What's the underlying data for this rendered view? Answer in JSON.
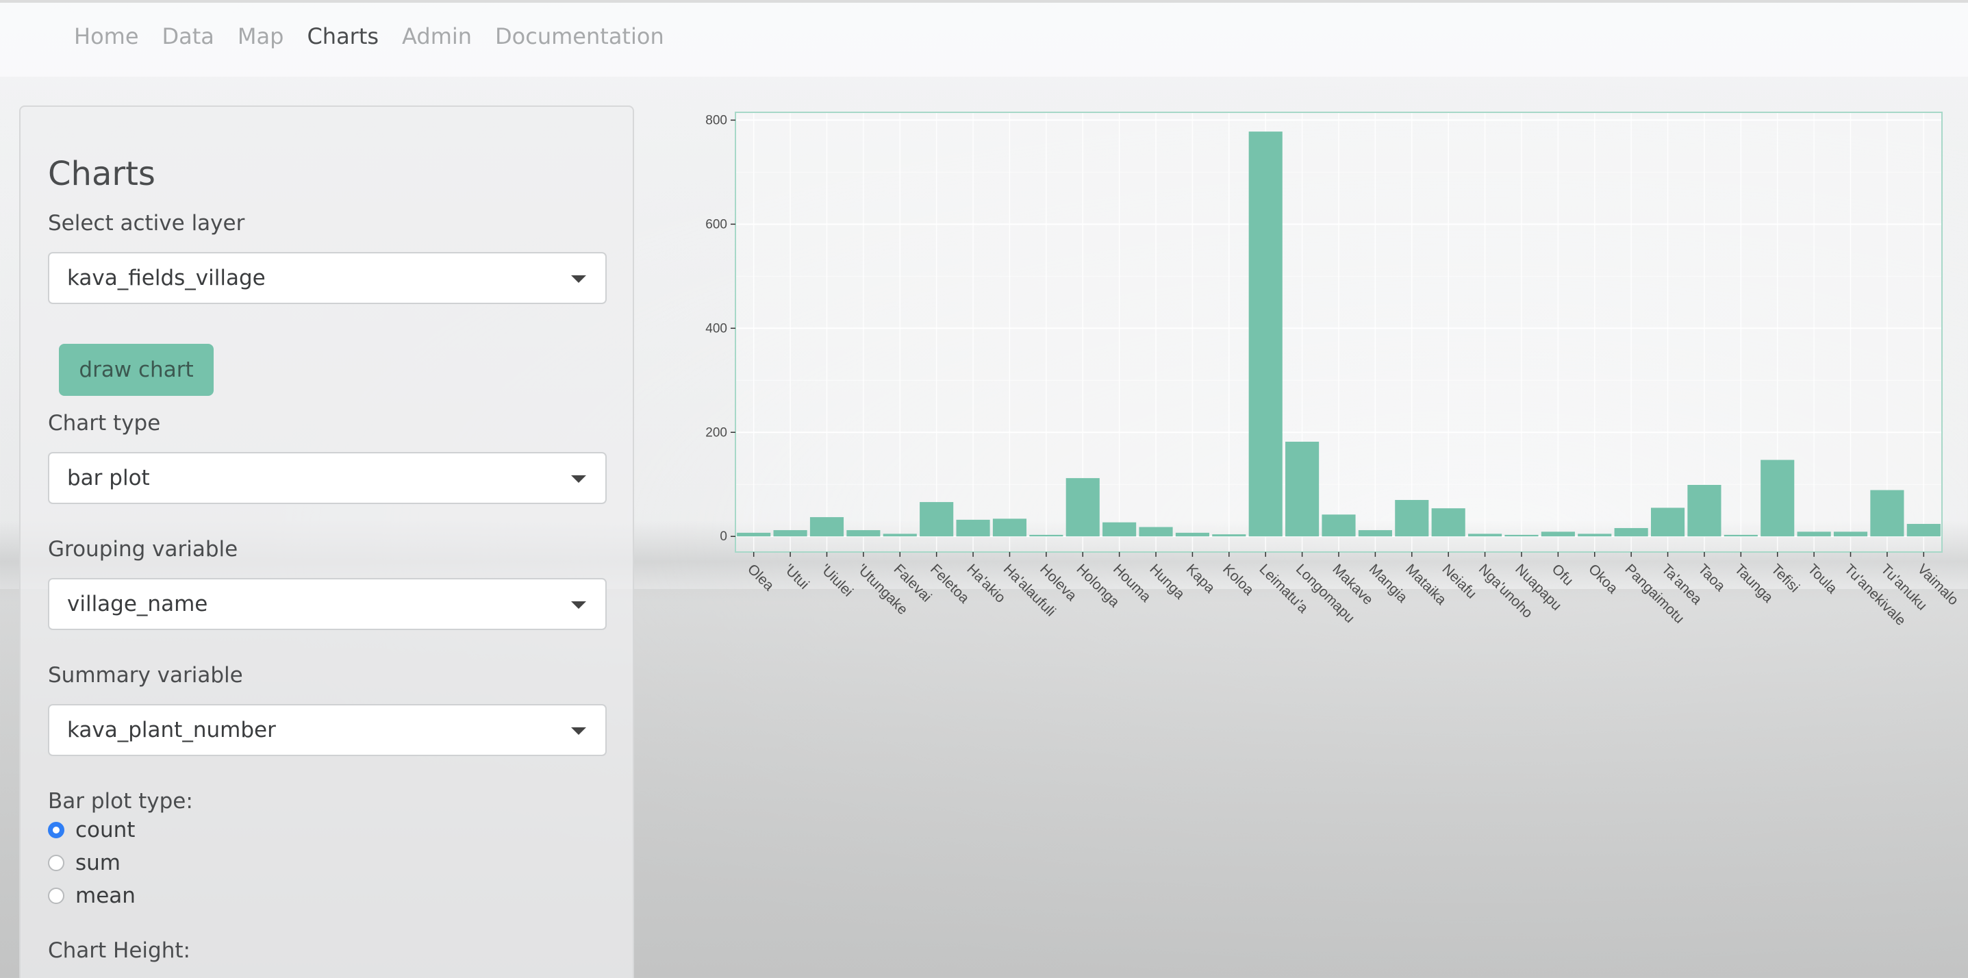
{
  "nav": {
    "items": [
      {
        "label": "Home",
        "active": false
      },
      {
        "label": "Data",
        "active": false
      },
      {
        "label": "Map",
        "active": false
      },
      {
        "label": "Charts",
        "active": true
      },
      {
        "label": "Admin",
        "active": false
      },
      {
        "label": "Documentation",
        "active": false
      }
    ]
  },
  "sidebar": {
    "title": "Charts",
    "layer_label": "Select active layer",
    "layer_value": "kava_fields_village",
    "draw_button": "draw chart",
    "chart_type_label": "Chart type",
    "chart_type_value": "bar plot",
    "grouping_label": "Grouping variable",
    "grouping_value": "village_name",
    "summary_label": "Summary variable",
    "summary_value": "kava_plant_number",
    "barplot_type_label": "Bar plot type:",
    "barplot_options": [
      {
        "label": "count",
        "checked": true
      },
      {
        "label": "sum",
        "checked": false
      },
      {
        "label": "mean",
        "checked": false
      }
    ],
    "chart_height_label": "Chart Height:"
  },
  "colors": {
    "accent": "#76c2ab",
    "radio_checked": "#2f7ef5",
    "bar_fill": "#76c2ab",
    "panel_border": "#a7d8c8"
  },
  "chart_data": {
    "type": "bar",
    "categories": [
      "Olea",
      "'Utui",
      "'Uiulei",
      "'Utungake",
      "Falevai",
      "Feletoa",
      "Ha'akio",
      "Ha'alaufuli",
      "Holeva",
      "Holonga",
      "Houma",
      "Hunga",
      "Kapa",
      "Koloa",
      "Leimatu'a",
      "Longomapu",
      "Makave",
      "Mangia",
      "Mataika",
      "Neiafu",
      "Nga'unoho",
      "Nuapapu",
      "Ofu",
      "Okoa",
      "Pangaimotu",
      "Ta'anea",
      "Taoa",
      "Taunga",
      "Tefisi",
      "Toula",
      "Tu'anekivale",
      "Tu'anuku",
      "Vaimalo"
    ],
    "values": [
      7,
      12,
      37,
      12,
      5,
      66,
      32,
      34,
      3,
      112,
      27,
      18,
      7,
      4,
      778,
      182,
      42,
      12,
      70,
      54,
      5,
      3,
      9,
      5,
      16,
      55,
      99,
      3,
      147,
      9,
      9,
      89,
      24
    ],
    "title": "",
    "xlabel": "",
    "ylabel": "",
    "ylim": [
      -30,
      815
    ],
    "yticks": [
      0,
      200,
      400,
      600,
      800
    ],
    "grid": true
  }
}
